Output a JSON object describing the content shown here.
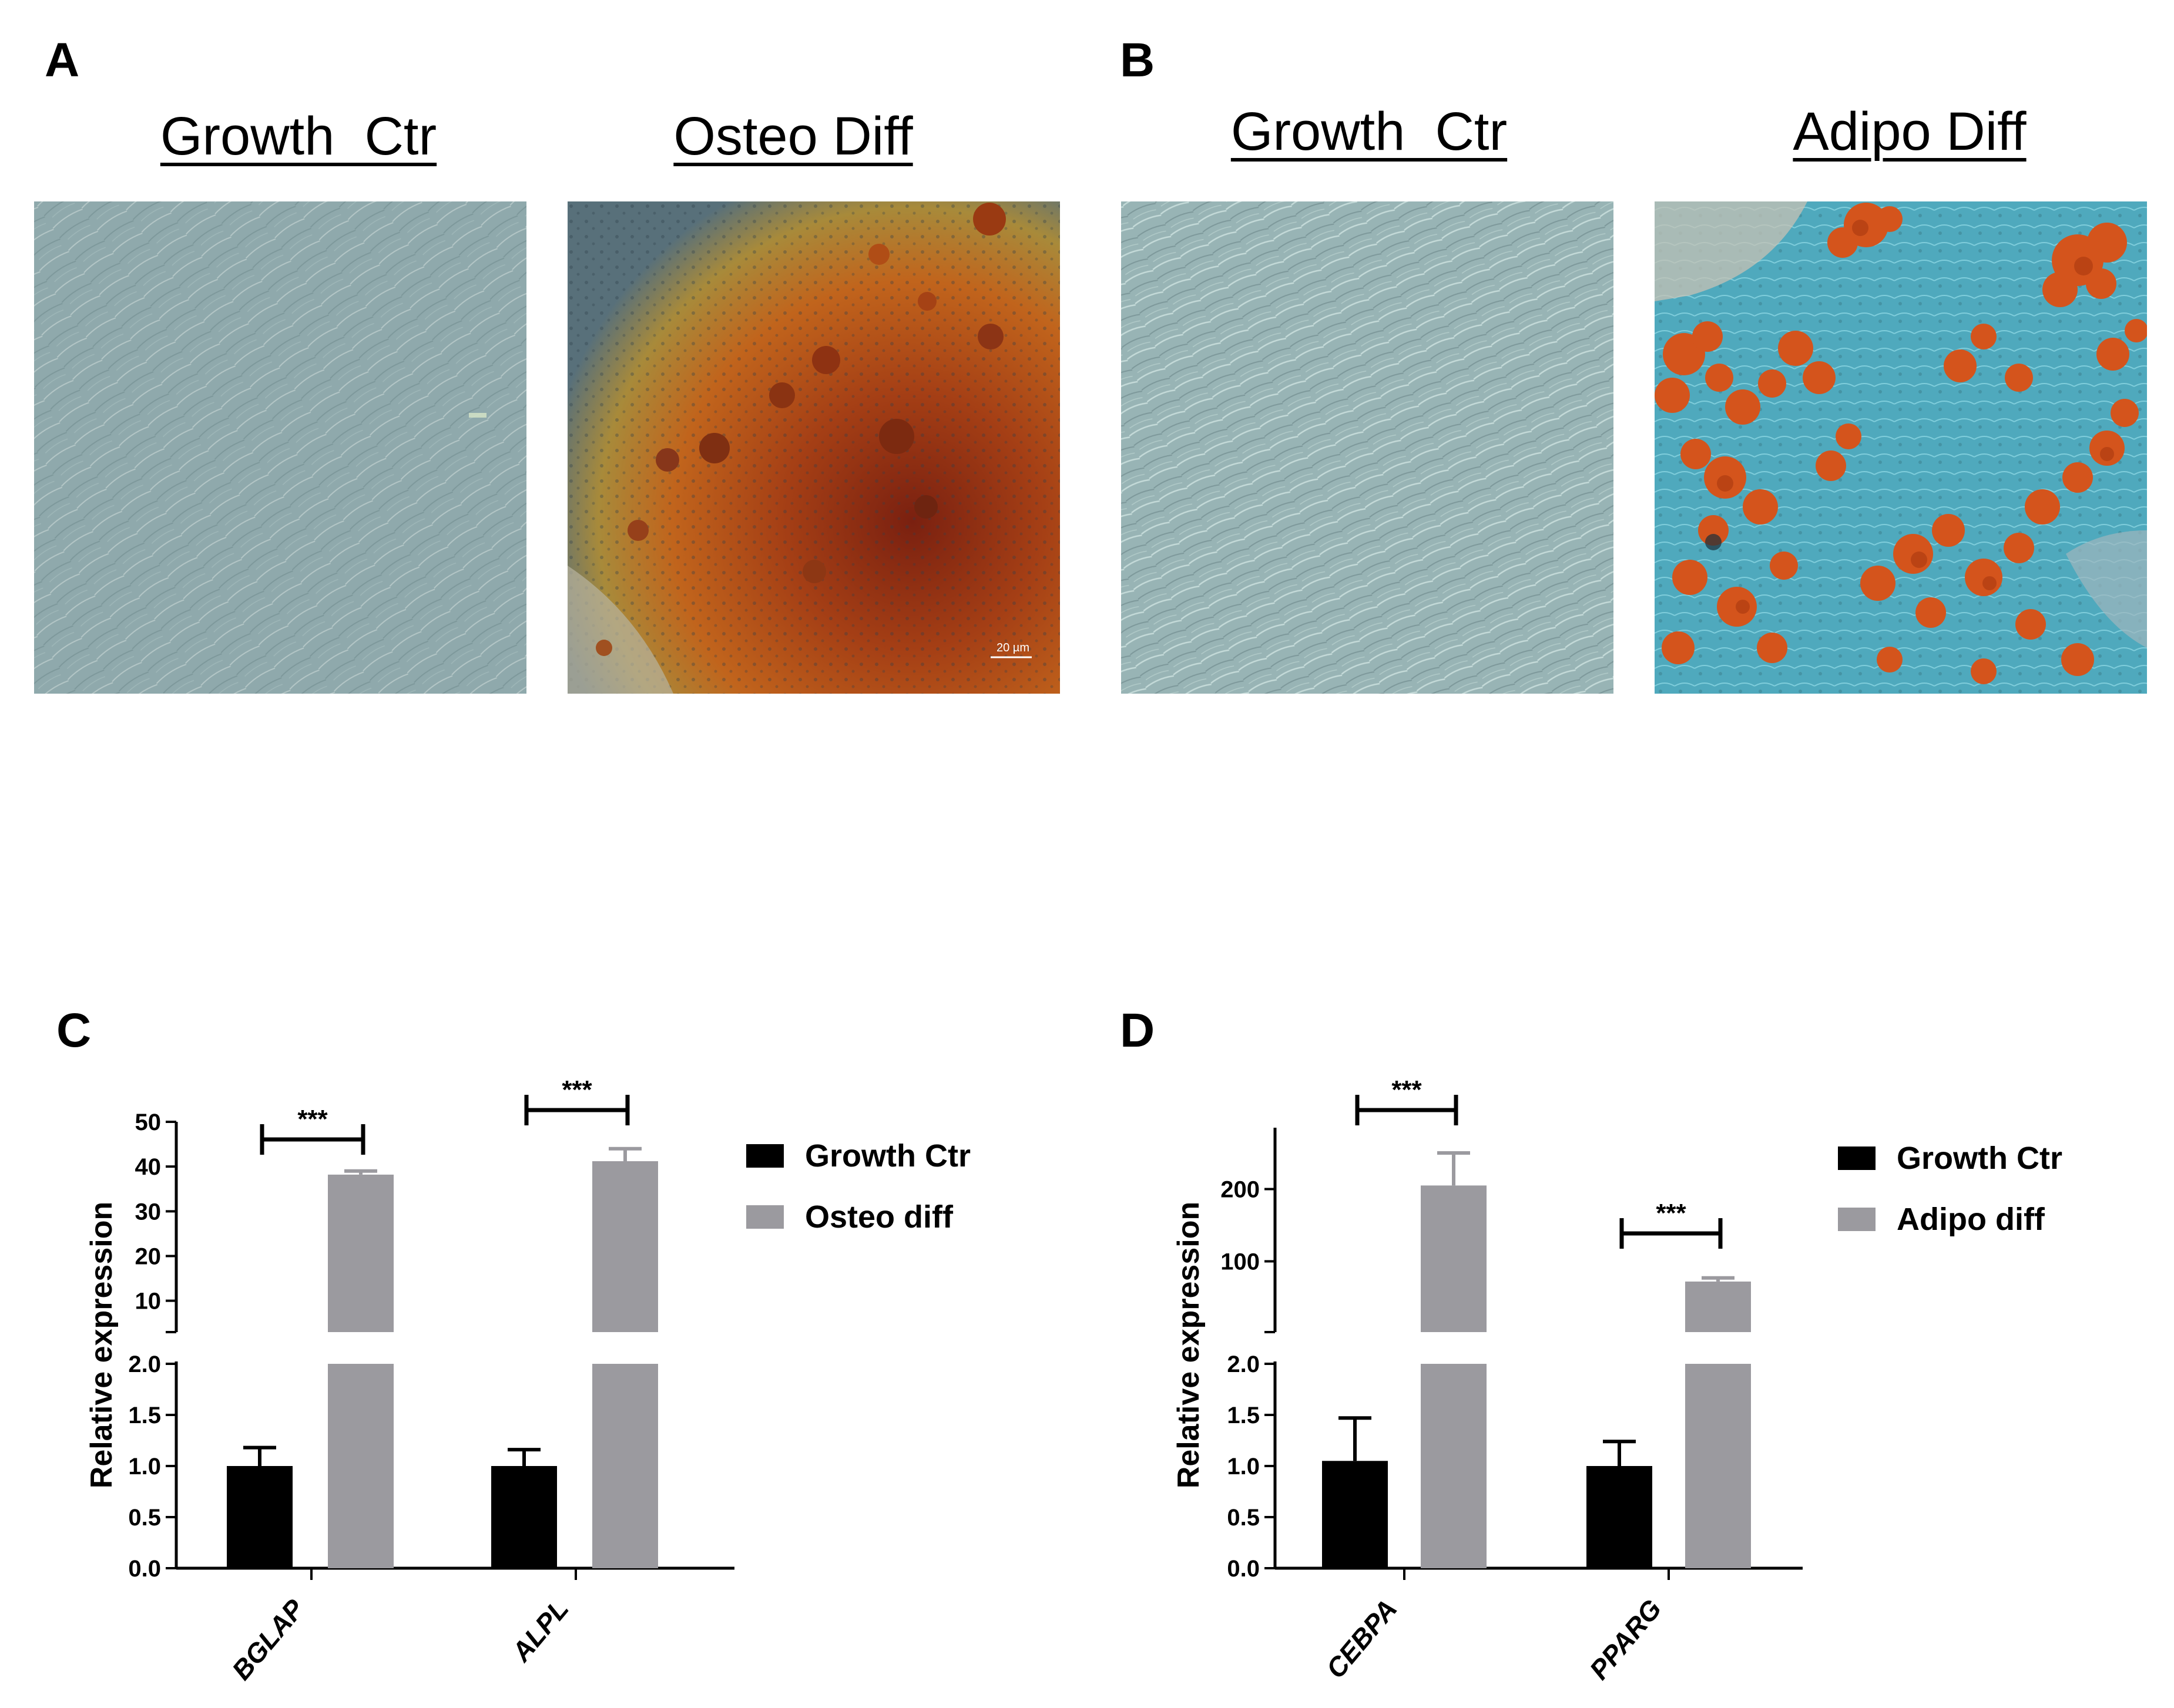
{
  "images": {
    "panel_a": {
      "letter": "A",
      "left_title": "Growth  Ctr",
      "right_title": "Osteo Diff",
      "scale_bar": "20 µm"
    },
    "panel_b": {
      "letter": "B",
      "left_title": "Growth  Ctr",
      "right_title": "Adipo Diff"
    }
  },
  "colors": {
    "growth_ctr": "#000000",
    "differentiated": "#9b9a9f",
    "control_culture": "#93aeb0",
    "osteo_stain": "#b5521a",
    "adipo_stain": "#d4541c",
    "adipo_background": "#4fb7cc"
  },
  "chart_data": [
    {
      "panel": "C",
      "type": "bar",
      "ylabel": "Relative expression",
      "categories": [
        "BGLAP",
        "ALPL"
      ],
      "series": [
        {
          "name": "Growth Ctr",
          "values": [
            1.0,
            1.0
          ],
          "errors": [
            0.18,
            0.16
          ]
        },
        {
          "name": "Osteo diff",
          "values": [
            38.2,
            41.2
          ],
          "errors": [
            0.8,
            2.8
          ]
        }
      ],
      "y_axis_break": true,
      "y_lower_range": [
        0,
        2.0
      ],
      "y_lower_ticks": [
        "0.0",
        "0.5",
        "1.0",
        "1.5",
        "2.0"
      ],
      "y_upper_range": [
        3,
        50
      ],
      "y_upper_ticks": [
        "10",
        "20",
        "30",
        "40",
        "50"
      ],
      "significance": [
        "***",
        "***"
      ],
      "legend_position": "right"
    },
    {
      "panel": "D",
      "type": "bar",
      "ylabel": "Relative expression",
      "categories": [
        "CEBPA",
        "PPARG"
      ],
      "series": [
        {
          "name": "Growth Ctr",
          "values": [
            1.05,
            1.0
          ],
          "errors": [
            0.42,
            0.24
          ]
        },
        {
          "name": "Adipo diff",
          "values": [
            205,
            72
          ],
          "errors": [
            45,
            5
          ]
        }
      ],
      "y_axis_break": true,
      "y_lower_range": [
        0,
        2.0
      ],
      "y_lower_ticks": [
        "0.0",
        "0.5",
        "1.0",
        "1.5",
        "2.0"
      ],
      "y_upper_range": [
        2,
        285
      ],
      "y_upper_ticks": [
        "100",
        "200"
      ],
      "significance": [
        "***",
        "***"
      ],
      "legend_position": "right"
    }
  ]
}
